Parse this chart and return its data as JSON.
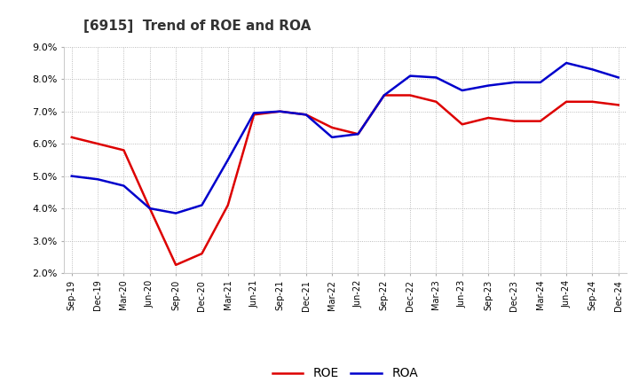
{
  "title": "[6915]  Trend of ROE and ROA",
  "labels": [
    "Sep-19",
    "Dec-19",
    "Mar-20",
    "Jun-20",
    "Sep-20",
    "Dec-20",
    "Mar-21",
    "Jun-21",
    "Sep-21",
    "Dec-21",
    "Mar-22",
    "Jun-22",
    "Sep-22",
    "Dec-22",
    "Mar-23",
    "Jun-23",
    "Sep-23",
    "Dec-23",
    "Mar-24",
    "Jun-24",
    "Sep-24",
    "Dec-24"
  ],
  "roe": [
    6.2,
    6.0,
    5.8,
    4.0,
    2.25,
    2.6,
    4.1,
    6.9,
    7.0,
    6.9,
    6.5,
    6.3,
    7.5,
    7.5,
    7.3,
    6.6,
    6.8,
    6.7,
    6.7,
    7.3,
    7.3,
    7.2
  ],
  "roa": [
    5.0,
    4.9,
    4.7,
    4.0,
    3.85,
    4.1,
    5.5,
    6.95,
    7.0,
    6.9,
    6.2,
    6.3,
    7.5,
    8.1,
    8.05,
    7.65,
    7.8,
    7.9,
    7.9,
    8.5,
    8.3,
    8.05
  ],
  "roe_color": "#dd0000",
  "roa_color": "#0000cc",
  "ylim_min": 2.0,
  "ylim_max": 9.0,
  "yticks": [
    2.0,
    3.0,
    4.0,
    5.0,
    6.0,
    7.0,
    8.0,
    9.0
  ],
  "bg_color": "#ffffff",
  "grid_color": "#aaaaaa",
  "line_width": 1.8
}
